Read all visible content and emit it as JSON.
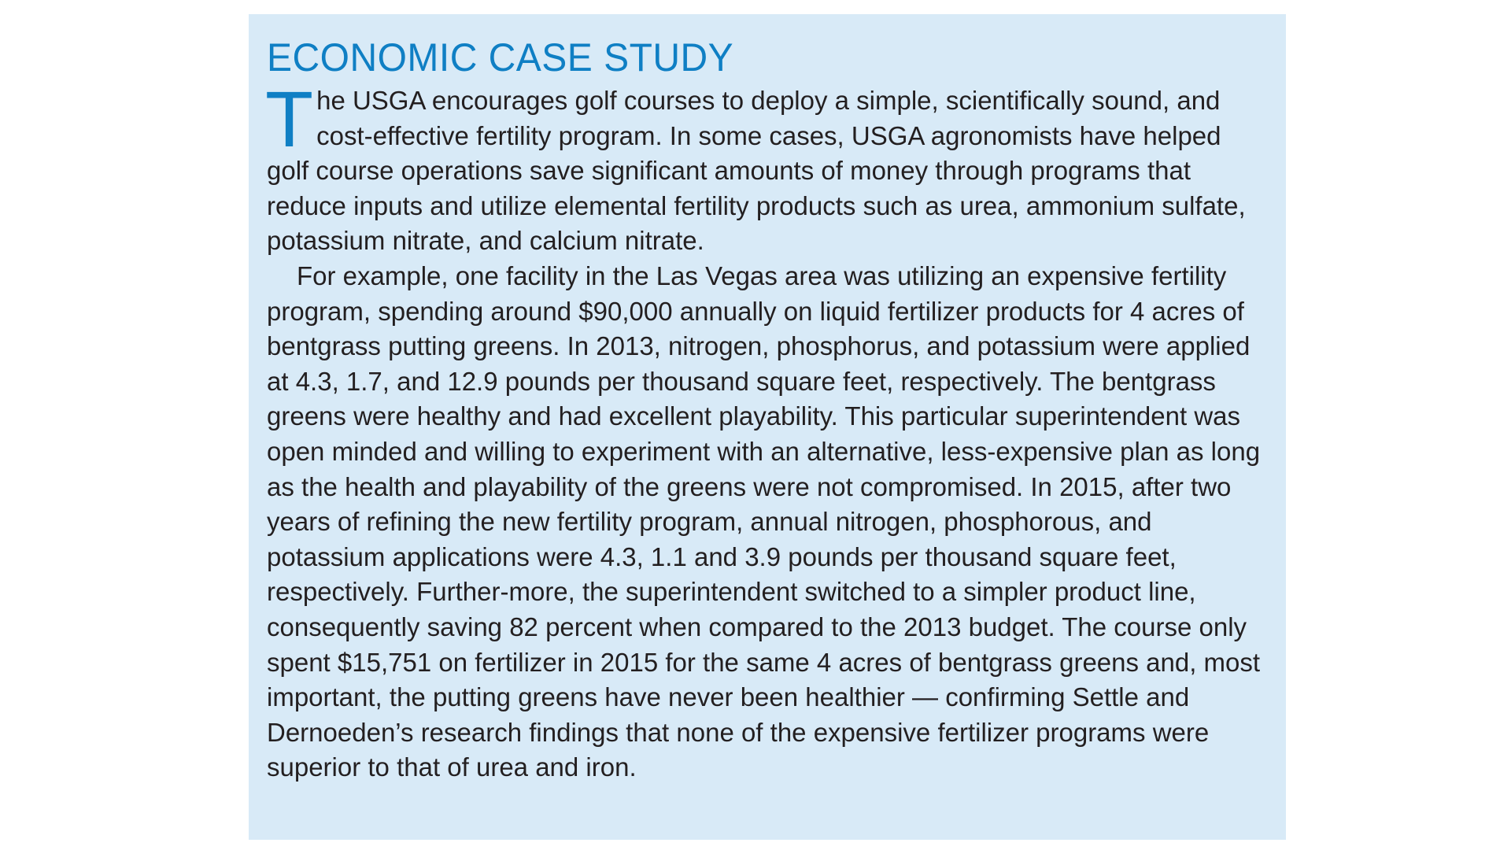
{
  "sidebar": {
    "title": "ECONOMIC CASE STUDY",
    "drop_cap": "T",
    "paragraph1_rest": "he USGA encourages golf courses to deploy a simple, scientifically sound, and cost-effective fertility program. In some cases, USGA agronomists have helped golf course operations save significant amounts of money through programs that reduce inputs and utilize elemental fertility products such as urea, ammonium sulfate, potassium nitrate, and calcium nitrate.",
    "paragraph2": "For example, one facility in the Las Vegas area was utilizing an expensive fertility program, spending around $90,000 annually on liquid fertilizer products for 4 acres of bentgrass putting greens. In 2013, nitrogen, phosphorus, and potassium were applied at 4.3, 1.7, and 12.9 pounds per thousand square feet, respectively. The bentgrass greens were healthy and had excellent playability. This particular superintendent was open minded and willing to experiment with an alternative, less-expensive plan as long as the health and playability of the greens were not compromised. In 2015, after two years of refining the new fertility program, annual nitrogen, phosphorous, and potassium applications were 4.3, 1.1 and 3.9 pounds per thousand square feet, respectively. Further-more, the superintendent switched to a simpler product line, consequently saving 82 percent when compared to the 2013 budget. The course only spent $15,751 on fertilizer in 2015 for the same 4 acres of bentgrass greens and, most important, the putting greens have never been healthier — confirming Settle and Dernoeden’s research findings that none of the expensive fertilizer programs were superior to that of urea and iron."
  },
  "colors": {
    "box_background": "#d8eaf7",
    "accent": "#0f7fc4",
    "body_text": "#231f20"
  }
}
